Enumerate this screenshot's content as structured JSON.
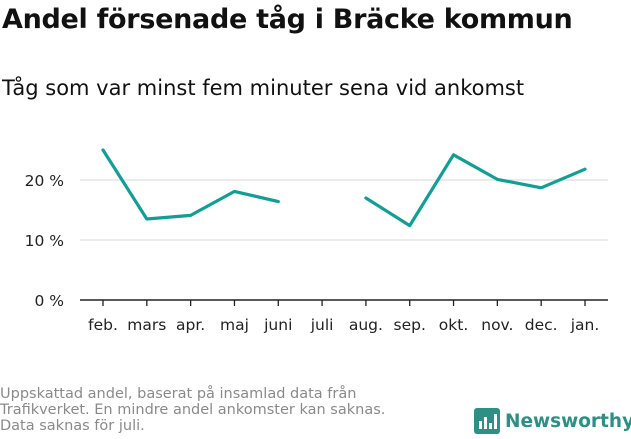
{
  "header": {
    "title": "Andel försenade tåg i Bräcke kommun",
    "subtitle": "Tåg som var minst fem minuter sena vid ankomst"
  },
  "chart_data": {
    "type": "line",
    "categories": [
      "feb.",
      "mars",
      "apr.",
      "maj",
      "juni",
      "juli",
      "aug.",
      "sep.",
      "okt.",
      "nov.",
      "dec.",
      "jan."
    ],
    "series": [
      {
        "values": [
          25,
          13.5,
          14.1,
          18.1,
          16.4,
          null,
          17,
          12.4,
          24.2,
          20.1,
          18.7,
          21.8
        ]
      }
    ],
    "yticks": [
      0,
      10,
      20
    ],
    "ytick_labels": [
      "0 %",
      "10 %",
      "20 %"
    ],
    "ylim": [
      0,
      27
    ],
    "grid": true,
    "colors": {
      "line": "#129e94",
      "grid": "#dedede",
      "axis": "#222222"
    }
  },
  "footer": {
    "note_lines": [
      "Uppskattad andel, baserat på insamlad data från",
      "Trafikverket. En mindre andel ankomster kan saknas.",
      "Data saknas för juli."
    ],
    "brand": "Newsworthy",
    "brand_icon": "bar-chart-logo-icon",
    "brand_color": "#2e8f85"
  }
}
